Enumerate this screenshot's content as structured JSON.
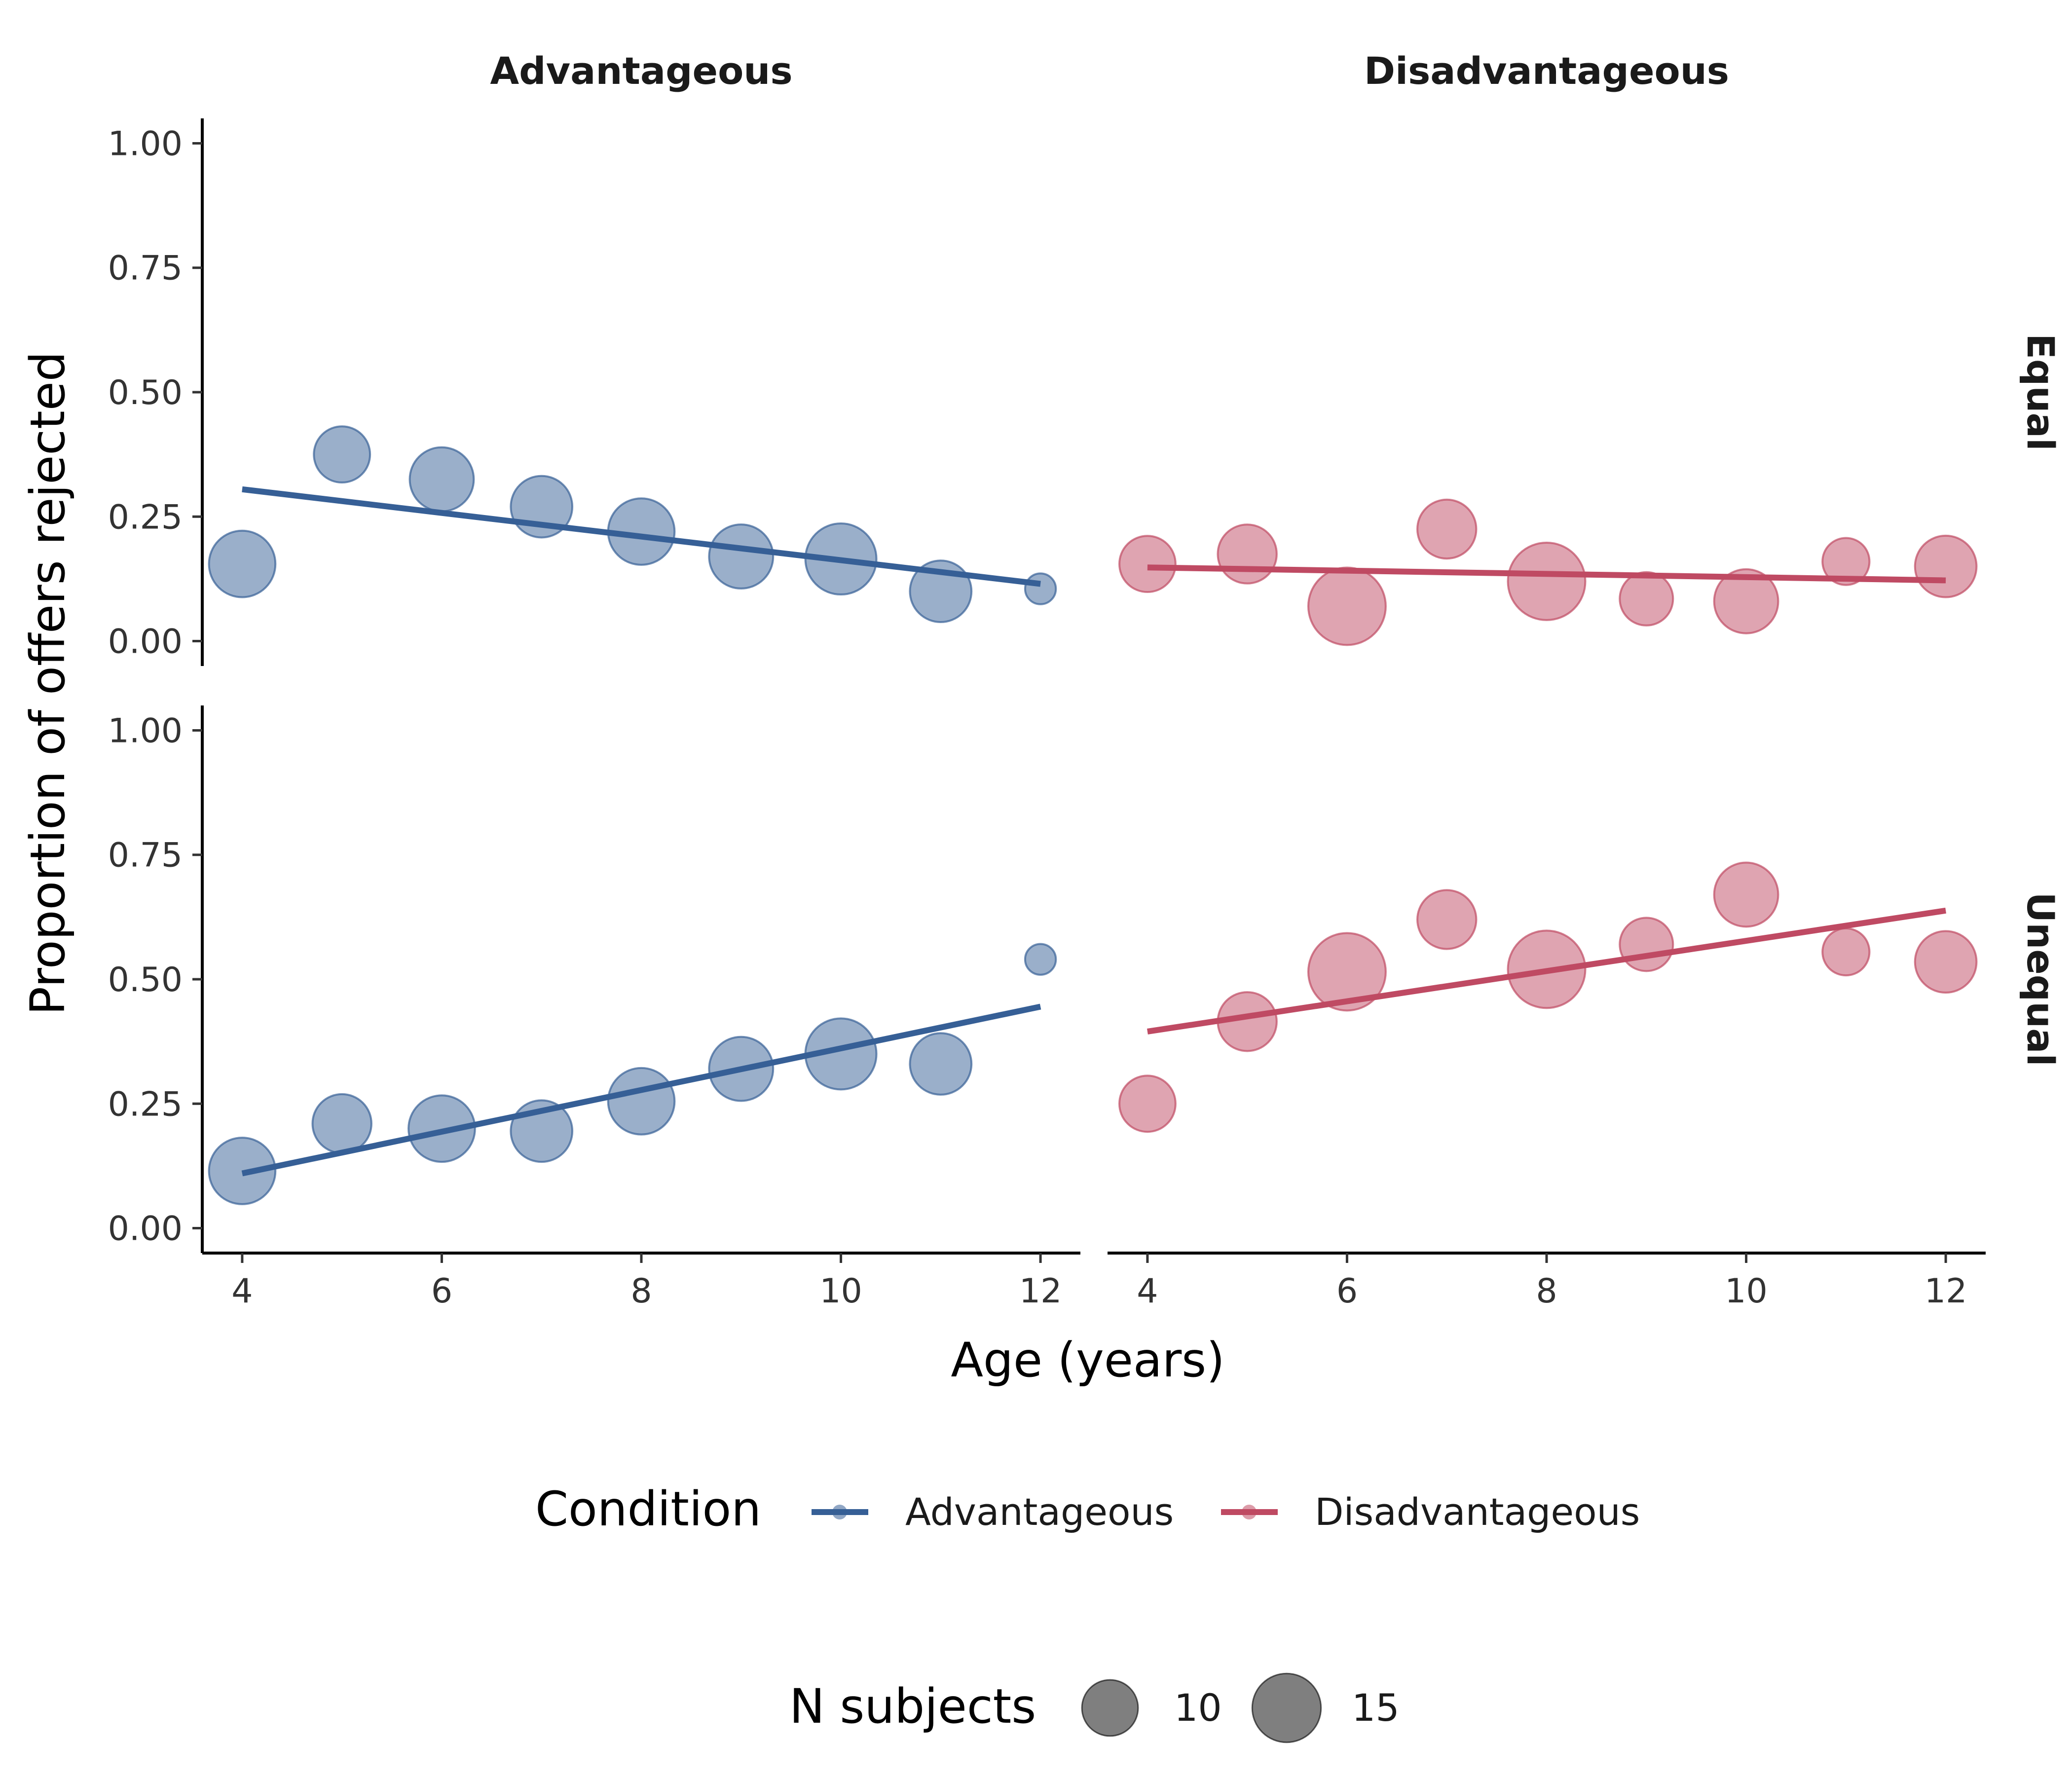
{
  "chart_data": {
    "type": "scatter",
    "title": "",
    "xlabel": "Age (years)",
    "ylabel": "Proportion of offers rejected",
    "xlim": [
      3.6,
      12.4
    ],
    "ylim": [
      -0.05,
      1.05
    ],
    "xticks": [
      4,
      6,
      8,
      10,
      12
    ],
    "yticks": [
      0,
      0.25,
      0.5,
      0.75,
      1
    ],
    "ytick_labels": [
      "0.00",
      "0.25",
      "0.50",
      "0.75",
      "1.00"
    ],
    "grid": false,
    "legend_position": "bottom",
    "columns": [
      "Advantageous",
      "Disadvantageous"
    ],
    "rows": [
      "Equal",
      "Unequal"
    ],
    "colors": {
      "Advantageous": "#365f96",
      "Disadvantageous": "#bf4a63"
    },
    "panels": [
      {
        "column": "Advantageous",
        "row": "Equal",
        "points": [
          {
            "x": 4,
            "y": 0.155,
            "n": 14
          },
          {
            "x": 5,
            "y": 0.375,
            "n": 10
          },
          {
            "x": 6,
            "y": 0.325,
            "n": 13
          },
          {
            "x": 7,
            "y": 0.27,
            "n": 12
          },
          {
            "x": 8,
            "y": 0.22,
            "n": 14
          },
          {
            "x": 9,
            "y": 0.17,
            "n": 13
          },
          {
            "x": 10,
            "y": 0.165,
            "n": 16
          },
          {
            "x": 11,
            "y": 0.1,
            "n": 12
          },
          {
            "x": 12,
            "y": 0.105,
            "n": 3
          }
        ],
        "fit": {
          "x": [
            4,
            12
          ],
          "y": [
            0.305,
            0.115
          ]
        }
      },
      {
        "column": "Disadvantageous",
        "row": "Equal",
        "points": [
          {
            "x": 4,
            "y": 0.155,
            "n": 10
          },
          {
            "x": 5,
            "y": 0.175,
            "n": 11
          },
          {
            "x": 6,
            "y": 0.07,
            "n": 19
          },
          {
            "x": 7,
            "y": 0.225,
            "n": 11
          },
          {
            "x": 8,
            "y": 0.12,
            "n": 19
          },
          {
            "x": 9,
            "y": 0.085,
            "n": 9
          },
          {
            "x": 10,
            "y": 0.08,
            "n": 13
          },
          {
            "x": 11,
            "y": 0.16,
            "n": 7
          },
          {
            "x": 12,
            "y": 0.15,
            "n": 12
          }
        ],
        "fit": {
          "x": [
            4,
            12
          ],
          "y": [
            0.148,
            0.122
          ]
        }
      },
      {
        "column": "Advantageous",
        "row": "Unequal",
        "points": [
          {
            "x": 4,
            "y": 0.115,
            "n": 14
          },
          {
            "x": 5,
            "y": 0.21,
            "n": 11
          },
          {
            "x": 6,
            "y": 0.2,
            "n": 14
          },
          {
            "x": 7,
            "y": 0.195,
            "n": 12
          },
          {
            "x": 8,
            "y": 0.255,
            "n": 14
          },
          {
            "x": 9,
            "y": 0.32,
            "n": 13
          },
          {
            "x": 10,
            "y": 0.35,
            "n": 16
          },
          {
            "x": 11,
            "y": 0.33,
            "n": 12
          },
          {
            "x": 12,
            "y": 0.54,
            "n": 3
          }
        ],
        "fit": {
          "x": [
            4,
            12
          ],
          "y": [
            0.11,
            0.445
          ]
        }
      },
      {
        "column": "Disadvantageous",
        "row": "Unequal",
        "points": [
          {
            "x": 4,
            "y": 0.25,
            "n": 10
          },
          {
            "x": 5,
            "y": 0.415,
            "n": 11
          },
          {
            "x": 6,
            "y": 0.515,
            "n": 19
          },
          {
            "x": 7,
            "y": 0.62,
            "n": 11
          },
          {
            "x": 8,
            "y": 0.52,
            "n": 19
          },
          {
            "x": 9,
            "y": 0.57,
            "n": 9
          },
          {
            "x": 10,
            "y": 0.67,
            "n": 13
          },
          {
            "x": 11,
            "y": 0.555,
            "n": 7
          },
          {
            "x": 12,
            "y": 0.535,
            "n": 12
          }
        ],
        "fit": {
          "x": [
            4,
            12
          ],
          "y": [
            0.395,
            0.638
          ]
        }
      }
    ]
  },
  "legend": {
    "condition_title": "Condition",
    "condition_items": [
      {
        "label": "Advantageous",
        "color": "#365f96"
      },
      {
        "label": "Disadvantageous",
        "color": "#bf4a63"
      }
    ],
    "size_title": "N subjects",
    "size_items": [
      {
        "label": "10",
        "n": 10
      },
      {
        "label": "15",
        "n": 15
      }
    ]
  }
}
